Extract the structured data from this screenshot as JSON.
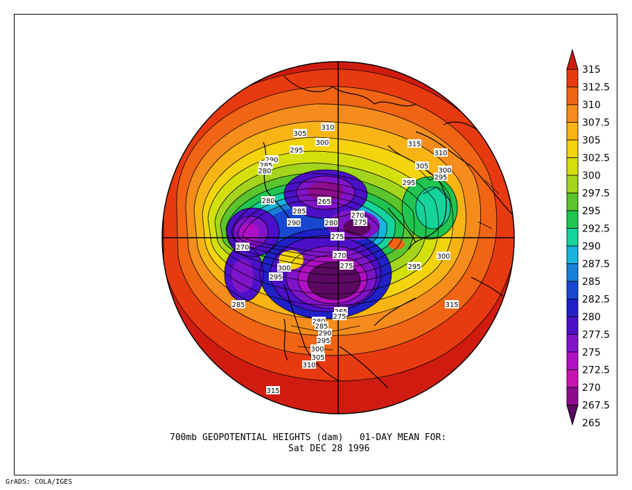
{
  "caption": {
    "line1": "700mb GEOPOTENTIAL HEIGHTS (dam)   01-DAY MEAN FOR:",
    "line2": "Sat DEC 28 1996"
  },
  "footer": "GrADS: COLA/IGES",
  "colorbar": {
    "levels": [
      "315",
      "312.5",
      "310",
      "307.5",
      "305",
      "302.5",
      "300",
      "297.5",
      "295",
      "292.5",
      "290",
      "287.5",
      "285",
      "282.5",
      "280",
      "277.5",
      "275",
      "272.5",
      "270",
      "267.5",
      "265"
    ],
    "colors": [
      "#d01c10",
      "#e83a10",
      "#f06414",
      "#f58c1c",
      "#f8b414",
      "#f4d40c",
      "#d4e00c",
      "#a4d41c",
      "#5cc42c",
      "#20c450",
      "#14d49c",
      "#18b4dc",
      "#1880d8",
      "#1848d0",
      "#2020c8",
      "#4c10c8",
      "#8014c8",
      "#b010c4",
      "#c814b0",
      "#8c0c8c",
      "#5c0860"
    ]
  },
  "map_labels": [
    {
      "text": "310",
      "kind": "contour-label"
    },
    {
      "text": "305",
      "kind": "contour-label"
    },
    {
      "text": "300",
      "kind": "contour-label"
    },
    {
      "text": "295",
      "kind": "contour-label"
    },
    {
      "text": "290",
      "kind": "contour-label"
    },
    {
      "text": "285",
      "kind": "contour-label"
    },
    {
      "text": "280",
      "kind": "contour-label"
    },
    {
      "text": "315",
      "kind": "contour-label"
    },
    {
      "text": "310",
      "kind": "contour-label"
    },
    {
      "text": "305",
      "kind": "contour-label"
    },
    {
      "text": "300",
      "kind": "contour-label"
    },
    {
      "text": "295",
      "kind": "contour-label"
    },
    {
      "text": "295",
      "kind": "contour-label"
    },
    {
      "text": "280",
      "kind": "contour-label"
    },
    {
      "text": "265",
      "kind": "contour-label"
    },
    {
      "text": "285",
      "kind": "contour-label"
    },
    {
      "text": "290",
      "kind": "contour-label"
    },
    {
      "text": "270",
      "kind": "contour-label"
    },
    {
      "text": "275",
      "kind": "contour-label"
    },
    {
      "text": "280",
      "kind": "contour-label"
    },
    {
      "text": "275",
      "kind": "contour-label"
    },
    {
      "text": "270",
      "kind": "contour-label"
    },
    {
      "text": "275",
      "kind": "contour-label"
    },
    {
      "text": "265",
      "kind": "contour-label"
    },
    {
      "text": "300",
      "kind": "contour-label"
    },
    {
      "text": "295",
      "kind": "contour-label"
    },
    {
      "text": "295",
      "kind": "contour-label"
    },
    {
      "text": "300",
      "kind": "contour-label"
    },
    {
      "text": "285",
      "kind": "contour-label"
    },
    {
      "text": "315",
      "kind": "contour-label"
    },
    {
      "text": "270",
      "kind": "contour-label"
    },
    {
      "text": "275",
      "kind": "contour-label"
    },
    {
      "text": "280",
      "kind": "contour-label"
    },
    {
      "text": "285",
      "kind": "contour-label"
    },
    {
      "text": "290",
      "kind": "contour-label"
    },
    {
      "text": "295",
      "kind": "contour-label"
    },
    {
      "text": "300",
      "kind": "contour-label"
    },
    {
      "text": "305",
      "kind": "contour-label"
    },
    {
      "text": "310",
      "kind": "contour-label"
    },
    {
      "text": "315",
      "kind": "contour-label"
    }
  ]
}
